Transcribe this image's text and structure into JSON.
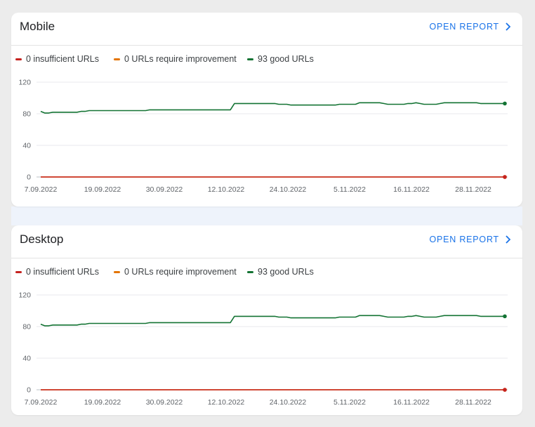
{
  "cards": [
    {
      "title": "Mobile",
      "open_report_label": "OPEN REPORT",
      "legend": [
        {
          "label": "0 insufficient URLs",
          "color": "#c5221f"
        },
        {
          "label": "0 URLs require improvement",
          "color": "#e37400"
        },
        {
          "label": "93 good URLs",
          "color": "#137333"
        }
      ]
    },
    {
      "title": "Desktop",
      "open_report_label": "OPEN REPORT",
      "legend": [
        {
          "label": "0 insufficient URLs",
          "color": "#c5221f"
        },
        {
          "label": "0 URLs require improvement",
          "color": "#e37400"
        },
        {
          "label": "93 good URLs",
          "color": "#137333"
        }
      ]
    }
  ],
  "chart_data": [
    {
      "type": "line",
      "title": "",
      "x_ticks": [
        "7.09.2022",
        "19.09.2022",
        "30.09.2022",
        "12.10.2022",
        "24.10.2022",
        "5.11.2022",
        "16.11.2022",
        "28.11.2022"
      ],
      "y_ticks": [
        "0",
        "40",
        "80",
        "120"
      ],
      "ylim": [
        0,
        120
      ],
      "grid": true,
      "series": [
        {
          "color": "#137333",
          "values": [
            83,
            81,
            81,
            82,
            82,
            82,
            82,
            82,
            82,
            82,
            83,
            83,
            84,
            84,
            84,
            84,
            84,
            84,
            84,
            84,
            84,
            84,
            84,
            84,
            84,
            84,
            84,
            85,
            85,
            85,
            85,
            85,
            85,
            85,
            85,
            85,
            85,
            85,
            85,
            85,
            85,
            85,
            85,
            85,
            85,
            85,
            85,
            85,
            93,
            93,
            93,
            93,
            93,
            93,
            93,
            93,
            93,
            93,
            93,
            92,
            92,
            92,
            91,
            91,
            91,
            91,
            91,
            91,
            91,
            91,
            91,
            91,
            91,
            91,
            92,
            92,
            92,
            92,
            92,
            94,
            94,
            94,
            94,
            94,
            94,
            93,
            92,
            92,
            92,
            92,
            92,
            93,
            93,
            94,
            93,
            92,
            92,
            92,
            92,
            93,
            94,
            94,
            94,
            94,
            94,
            94,
            94,
            94,
            94,
            93,
            93,
            93,
            93,
            93,
            93,
            93
          ]
        },
        {
          "color": "#e37400",
          "values": [
            0,
            0,
            0,
            0,
            0,
            0,
            0,
            0,
            0,
            0,
            0,
            0,
            0,
            0,
            0,
            0,
            0,
            0,
            0,
            0,
            0,
            0,
            0,
            0,
            0,
            0,
            0,
            0,
            0,
            0,
            0,
            0,
            0,
            0,
            0,
            0,
            0,
            0,
            0,
            0,
            0,
            0,
            0,
            0,
            0,
            0,
            0,
            0,
            0,
            0,
            0,
            0,
            0,
            0,
            0,
            0,
            0,
            0,
            0,
            0,
            0,
            0,
            0,
            0,
            0,
            0,
            0,
            0,
            0,
            0,
            0,
            0,
            0,
            0,
            0,
            0,
            0,
            0,
            0,
            0,
            0,
            0,
            0,
            0,
            0,
            0,
            0,
            0,
            0,
            0,
            0,
            0,
            0,
            0,
            0,
            0,
            0,
            0,
            0,
            0,
            0,
            0,
            0,
            0,
            0,
            0,
            0,
            0,
            0,
            0,
            0,
            0,
            0,
            0,
            0,
            0
          ]
        },
        {
          "color": "#c5221f",
          "values": [
            0,
            0,
            0,
            0,
            0,
            0,
            0,
            0,
            0,
            0,
            0,
            0,
            0,
            0,
            0,
            0,
            0,
            0,
            0,
            0,
            0,
            0,
            0,
            0,
            0,
            0,
            0,
            0,
            0,
            0,
            0,
            0,
            0,
            0,
            0,
            0,
            0,
            0,
            0,
            0,
            0,
            0,
            0,
            0,
            0,
            0,
            0,
            0,
            0,
            0,
            0,
            0,
            0,
            0,
            0,
            0,
            0,
            0,
            0,
            0,
            0,
            0,
            0,
            0,
            0,
            0,
            0,
            0,
            0,
            0,
            0,
            0,
            0,
            0,
            0,
            0,
            0,
            0,
            0,
            0,
            0,
            0,
            0,
            0,
            0,
            0,
            0,
            0,
            0,
            0,
            0,
            0,
            0,
            0,
            0,
            0,
            0,
            0,
            0,
            0,
            0,
            0,
            0,
            0,
            0,
            0,
            0,
            0,
            0,
            0,
            0,
            0,
            0,
            0,
            0,
            0
          ]
        }
      ]
    },
    {
      "type": "line",
      "title": "",
      "x_ticks": [
        "7.09.2022",
        "19.09.2022",
        "30.09.2022",
        "12.10.2022",
        "24.10.2022",
        "5.11.2022",
        "16.11.2022",
        "28.11.2022"
      ],
      "y_ticks": [
        "0",
        "40",
        "80",
        "120"
      ],
      "ylim": [
        0,
        120
      ],
      "grid": true,
      "series": [
        {
          "color": "#137333",
          "values": [
            83,
            81,
            81,
            82,
            82,
            82,
            82,
            82,
            82,
            82,
            83,
            83,
            84,
            84,
            84,
            84,
            84,
            84,
            84,
            84,
            84,
            84,
            84,
            84,
            84,
            84,
            84,
            85,
            85,
            85,
            85,
            85,
            85,
            85,
            85,
            85,
            85,
            85,
            85,
            85,
            85,
            85,
            85,
            85,
            85,
            85,
            85,
            85,
            93,
            93,
            93,
            93,
            93,
            93,
            93,
            93,
            93,
            93,
            93,
            92,
            92,
            92,
            91,
            91,
            91,
            91,
            91,
            91,
            91,
            91,
            91,
            91,
            91,
            91,
            92,
            92,
            92,
            92,
            92,
            94,
            94,
            94,
            94,
            94,
            94,
            93,
            92,
            92,
            92,
            92,
            92,
            93,
            93,
            94,
            93,
            92,
            92,
            92,
            92,
            93,
            94,
            94,
            94,
            94,
            94,
            94,
            94,
            94,
            94,
            93,
            93,
            93,
            93,
            93,
            93,
            93
          ]
        },
        {
          "color": "#e37400",
          "values": [
            0,
            0,
            0,
            0,
            0,
            0,
            0,
            0,
            0,
            0,
            0,
            0,
            0,
            0,
            0,
            0,
            0,
            0,
            0,
            0,
            0,
            0,
            0,
            0,
            0,
            0,
            0,
            0,
            0,
            0,
            0,
            0,
            0,
            0,
            0,
            0,
            0,
            0,
            0,
            0,
            0,
            0,
            0,
            0,
            0,
            0,
            0,
            0,
            0,
            0,
            0,
            0,
            0,
            0,
            0,
            0,
            0,
            0,
            0,
            0,
            0,
            0,
            0,
            0,
            0,
            0,
            0,
            0,
            0,
            0,
            0,
            0,
            0,
            0,
            0,
            0,
            0,
            0,
            0,
            0,
            0,
            0,
            0,
            0,
            0,
            0,
            0,
            0,
            0,
            0,
            0,
            0,
            0,
            0,
            0,
            0,
            0,
            0,
            0,
            0,
            0,
            0,
            0,
            0,
            0,
            0,
            0,
            0,
            0,
            0,
            0,
            0,
            0,
            0,
            0,
            0
          ]
        },
        {
          "color": "#c5221f",
          "values": [
            0,
            0,
            0,
            0,
            0,
            0,
            0,
            0,
            0,
            0,
            0,
            0,
            0,
            0,
            0,
            0,
            0,
            0,
            0,
            0,
            0,
            0,
            0,
            0,
            0,
            0,
            0,
            0,
            0,
            0,
            0,
            0,
            0,
            0,
            0,
            0,
            0,
            0,
            0,
            0,
            0,
            0,
            0,
            0,
            0,
            0,
            0,
            0,
            0,
            0,
            0,
            0,
            0,
            0,
            0,
            0,
            0,
            0,
            0,
            0,
            0,
            0,
            0,
            0,
            0,
            0,
            0,
            0,
            0,
            0,
            0,
            0,
            0,
            0,
            0,
            0,
            0,
            0,
            0,
            0,
            0,
            0,
            0,
            0,
            0,
            0,
            0,
            0,
            0,
            0,
            0,
            0,
            0,
            0,
            0,
            0,
            0,
            0,
            0,
            0,
            0,
            0,
            0,
            0,
            0,
            0,
            0,
            0,
            0,
            0,
            0,
            0,
            0,
            0,
            0,
            0
          ]
        }
      ]
    }
  ]
}
